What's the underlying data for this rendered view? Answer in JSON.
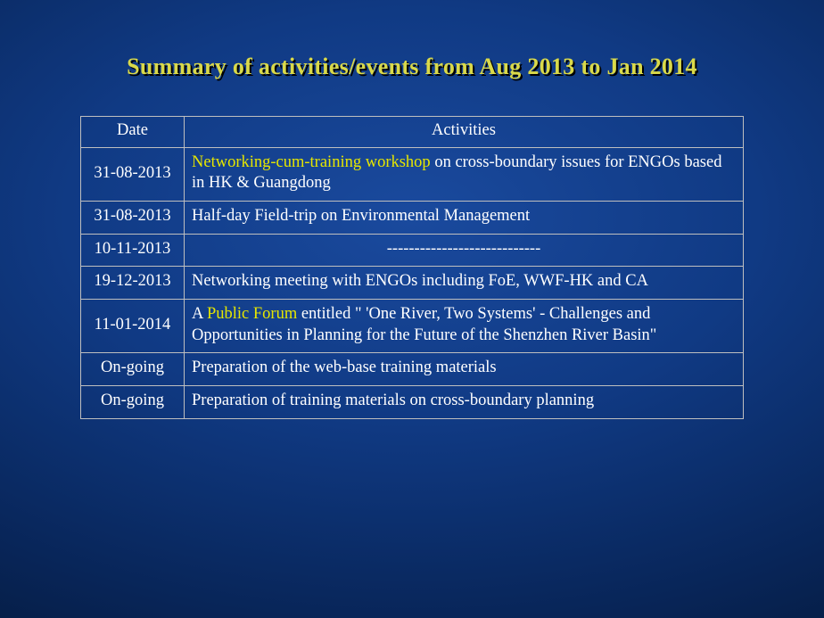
{
  "slide": {
    "title": "Summary of activities/events from Aug 2013 to  Jan 2014",
    "background": {
      "gradient_center": "#1a4a9e",
      "gradient_mid": "#082558",
      "gradient_edge": "#010a1c"
    }
  },
  "table": {
    "columns": [
      "Date",
      "Activities"
    ],
    "border_color": "#bfbfbf",
    "text_color": "#ffffff",
    "highlight_color": "#e6e600",
    "fontsize": 18.5,
    "date_col_width": 116,
    "rows": [
      {
        "date": "31-08-2013",
        "activity_parts": [
          {
            "text": "Networking-cum-training  workshop",
            "highlight": true
          },
          {
            "text": " on cross-boundary  issues for ENGOs based  in HK & Guangdong",
            "highlight": false
          }
        ],
        "align": "left"
      },
      {
        "date": "31-08-2013",
        "activity_parts": [
          {
            "text": "Half-day  Field-trip  on Environmental  Management",
            "highlight": false
          }
        ],
        "align": "left"
      },
      {
        "date": "10-11-2013",
        "activity_parts": [
          {
            "text": "----------------------------",
            "highlight": false
          }
        ],
        "align": "center"
      },
      {
        "date": "19-12-2013",
        "activity_parts": [
          {
            "text": "Networking meeting  with ENGOs including  FoE, WWF-HK and CA",
            "highlight": false
          }
        ],
        "align": "left"
      },
      {
        "date": "11-01-2014",
        "activity_parts": [
          {
            "text": "A ",
            "highlight": false
          },
          {
            "text": "Public Forum",
            "highlight": true
          },
          {
            "text": " entitled \" 'One River, Two Systems'  - Challenges and Opportunities  in Planning for the Future of the Shenzhen River Basin\"",
            "highlight": false
          }
        ],
        "align": "left"
      },
      {
        "date": "On-going",
        "activity_parts": [
          {
            "text": "Preparation of the web-base training  materials",
            "highlight": false
          }
        ],
        "align": "left"
      },
      {
        "date": "On-going",
        "activity_parts": [
          {
            "text": "Preparation of training materials on cross-boundary  planning",
            "highlight": false
          }
        ],
        "align": "left"
      }
    ]
  }
}
